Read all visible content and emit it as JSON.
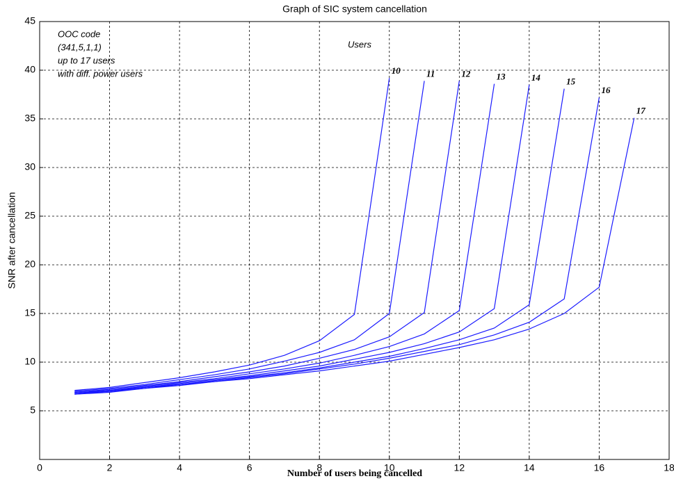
{
  "chart_data": {
    "type": "line",
    "title": "Graph of SIC system cancellation",
    "xlabel": "Number of users being cancelled",
    "ylabel": "SNR after cancellation",
    "annotations": [
      "OOC code",
      "(341,5,1,1)",
      "up to 17 users",
      "with diff. power users",
      "Users"
    ],
    "x": [
      1,
      2,
      3,
      4,
      5,
      6,
      7,
      8,
      9,
      10,
      11,
      12,
      13,
      14,
      15,
      16,
      17
    ],
    "series": [
      {
        "name": "10",
        "color": "#1a1aff",
        "values": [
          7.1,
          7.4,
          7.9,
          8.4,
          9.0,
          9.7,
          10.7,
          12.2,
          14.9,
          39.2,
          null,
          null,
          null,
          null,
          null,
          null,
          null
        ]
      },
      {
        "name": "11",
        "color": "#1a1aff",
        "values": [
          7.0,
          7.3,
          7.7,
          8.2,
          8.7,
          9.3,
          10.1,
          11.0,
          12.3,
          15.0,
          38.9,
          null,
          null,
          null,
          null,
          null,
          null
        ]
      },
      {
        "name": "12",
        "color": "#1a1aff",
        "values": [
          6.9,
          7.2,
          7.6,
          8.0,
          8.5,
          9.0,
          9.6,
          10.4,
          11.3,
          12.6,
          15.1,
          38.9,
          null,
          null,
          null,
          null,
          null
        ]
      },
      {
        "name": "13",
        "color": "#1a1aff",
        "values": [
          6.9,
          7.1,
          7.5,
          7.9,
          8.3,
          8.8,
          9.3,
          9.9,
          10.7,
          11.6,
          12.9,
          15.3,
          38.6,
          null,
          null,
          null,
          null
        ]
      },
      {
        "name": "14",
        "color": "#1a1aff",
        "values": [
          6.8,
          7.1,
          7.4,
          7.8,
          8.2,
          8.6,
          9.1,
          9.6,
          10.3,
          11.0,
          11.9,
          13.1,
          15.5,
          38.5,
          null,
          null,
          null
        ]
      },
      {
        "name": "15",
        "color": "#1a1aff",
        "values": [
          6.8,
          7.0,
          7.4,
          7.7,
          8.1,
          8.5,
          8.9,
          9.4,
          10.0,
          10.6,
          11.4,
          12.3,
          13.5,
          15.9,
          38.1,
          null,
          null
        ]
      },
      {
        "name": "16",
        "color": "#1a1aff",
        "values": [
          6.7,
          7.0,
          7.3,
          7.7,
          8.0,
          8.4,
          8.8,
          9.3,
          9.8,
          10.4,
          11.1,
          11.8,
          12.8,
          14.1,
          16.5,
          37.2,
          null
        ]
      },
      {
        "name": "17",
        "color": "#1a1aff",
        "values": [
          6.7,
          6.9,
          7.3,
          7.6,
          8.0,
          8.3,
          8.7,
          9.1,
          9.6,
          10.1,
          10.8,
          11.5,
          12.3,
          13.4,
          15.0,
          17.7,
          35.1
        ]
      }
    ],
    "xlim": [
      0,
      18
    ],
    "xticks": [
      0,
      2,
      4,
      6,
      8,
      10,
      12,
      14,
      16,
      18
    ],
    "ylim": [
      0,
      45
    ],
    "yticks": [
      5,
      10,
      15,
      20,
      25,
      30,
      35,
      40,
      45
    ],
    "grid": true
  }
}
